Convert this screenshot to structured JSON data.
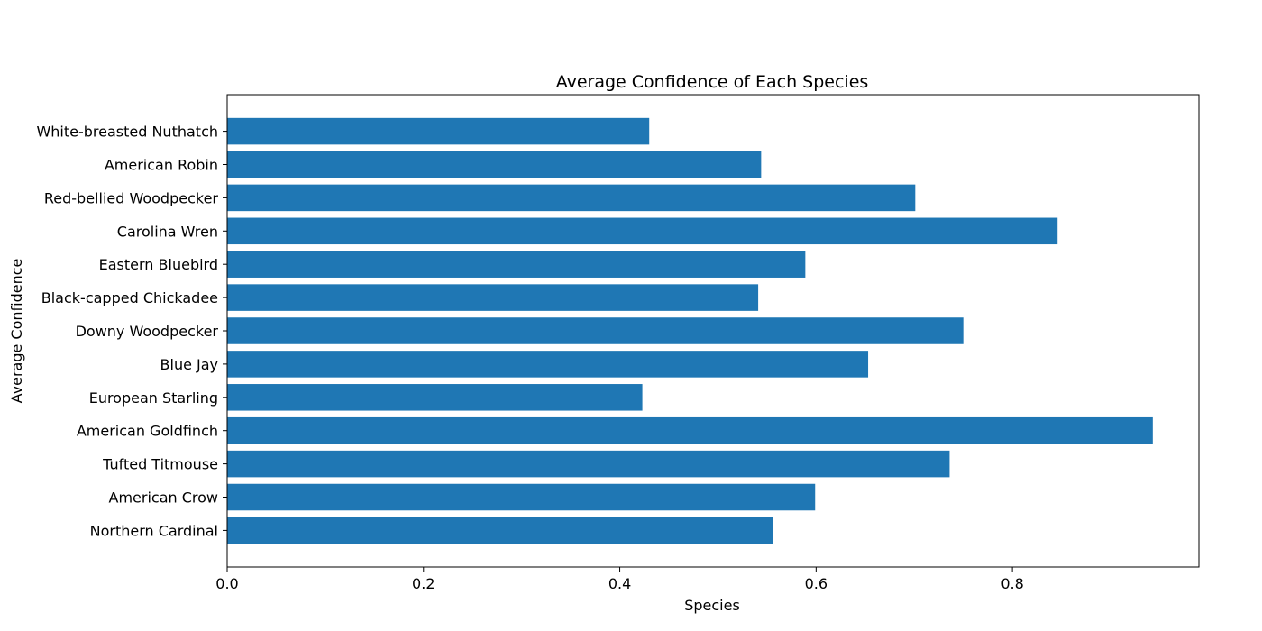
{
  "chart_data": {
    "type": "bar",
    "orientation": "horizontal",
    "title": "Average Confidence of Each Species",
    "xlabel": "Species",
    "ylabel": "Average Confidence",
    "categories": [
      "Northern Cardinal",
      "American Crow",
      "Tufted Titmouse",
      "American Goldfinch",
      "European Starling",
      "Blue Jay",
      "Downy Woodpecker",
      "Black-capped Chickadee",
      "Eastern Bluebird",
      "Carolina Wren",
      "Red-bellied Woodpecker",
      "American Robin",
      "White-breasted Nuthatch"
    ],
    "values": [
      0.556,
      0.599,
      0.736,
      0.943,
      0.423,
      0.653,
      0.75,
      0.541,
      0.589,
      0.846,
      0.701,
      0.544,
      0.43
    ],
    "xlim": [
      0,
      0.99
    ],
    "xticks": [
      0.0,
      0.2,
      0.4,
      0.6,
      0.8
    ],
    "xtick_labels": [
      "0.0",
      "0.2",
      "0.4",
      "0.6",
      "0.8"
    ],
    "bar_color": "#1f77b4",
    "grid": false,
    "legend": "none"
  }
}
